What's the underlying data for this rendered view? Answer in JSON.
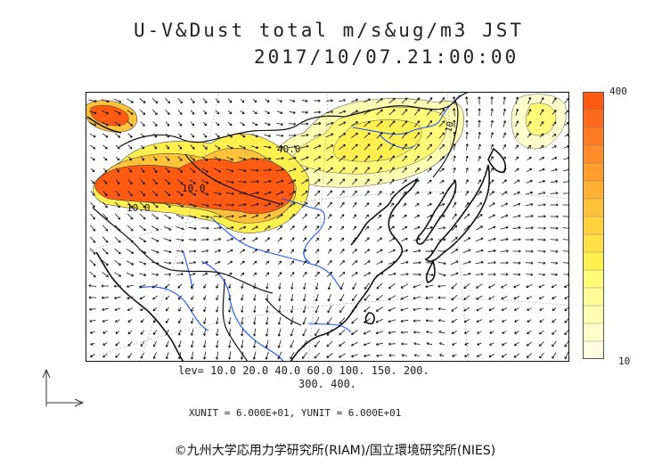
{
  "title": {
    "line1": "U-V&Dust total m/s&ug/m3 JST",
    "line2": "2017/10/07.21:00:00"
  },
  "contour_labels": [
    "40.0",
    "10.0",
    "10.0",
    "10"
  ],
  "legend": {
    "max_label": "400",
    "min_label": "10",
    "colors": [
      "#ff5a14",
      "#ff6a1c",
      "#ff7c24",
      "#ff8c2a",
      "#ff9e2e",
      "#ffb032",
      "#ffc23a",
      "#ffd23e",
      "#ffe048",
      "#fff050",
      "#fffa78",
      "#fffb96",
      "#fffcb4",
      "#fffdcc",
      "#fffee2"
    ]
  },
  "levels": {
    "line1": "lev= 10.0 20.0 40.0 60.0 100. 150. 200.",
    "line2": "300. 400."
  },
  "units": "XUNIT = 6.000E+01, YUNIT = 6.000E+01",
  "credit": "©九州大学応用力学研究所(RIAM)/国立環境研究所(NIES)"
}
